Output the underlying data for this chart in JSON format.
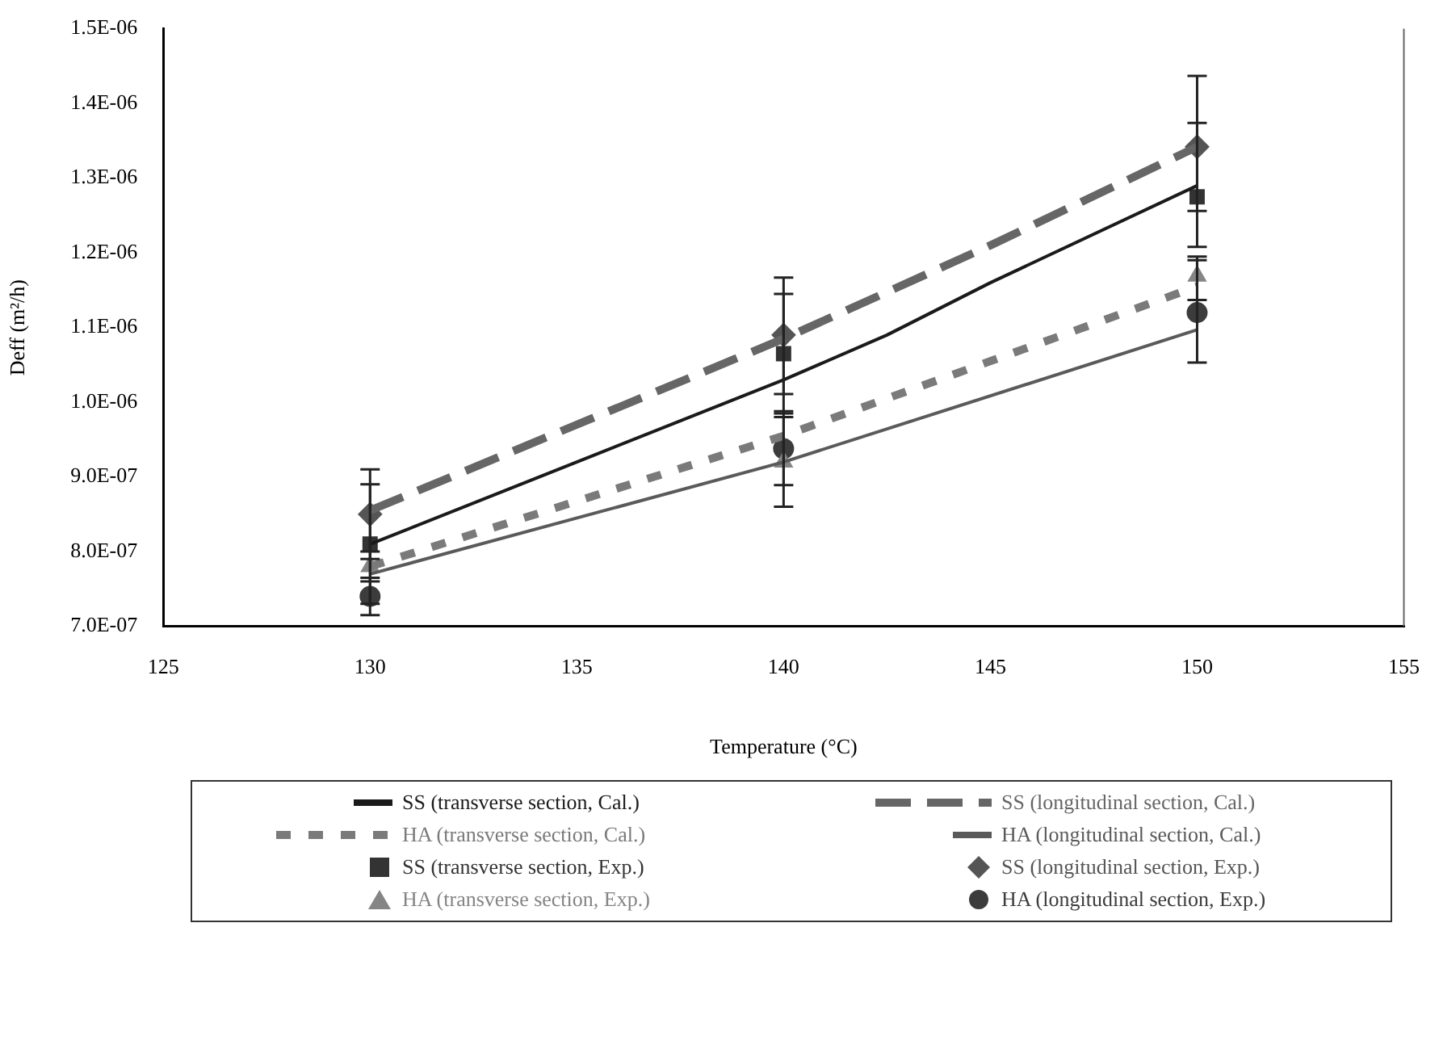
{
  "chart_data": {
    "type": "line",
    "xlabel": "Temperature (°C)",
    "ylabel": "Deff (m²/h)",
    "xlim": [
      125,
      155
    ],
    "xticks": [
      125,
      130,
      135,
      140,
      145,
      150,
      155
    ],
    "ylim": [
      7e-07,
      1.5e-06
    ],
    "yticks": [
      {
        "value": 7e-07,
        "label": "7.0E-07"
      },
      {
        "value": 8e-07,
        "label": "8.0E-07"
      },
      {
        "value": 9e-07,
        "label": "9.0E-07"
      },
      {
        "value": 1e-06,
        "label": "1.0E-06"
      },
      {
        "value": 1.1e-06,
        "label": "1.1E-06"
      },
      {
        "value": 1.2e-06,
        "label": "1.2E-06"
      },
      {
        "value": 1.3e-06,
        "label": "1.3E-06"
      },
      {
        "value": 1.4e-06,
        "label": "1.4E-06"
      },
      {
        "value": 1.5e-06,
        "label": "1.5E-06"
      }
    ],
    "grid": false,
    "legend": "bottom",
    "series": [
      {
        "name": "SS (transverse section, Cal.)",
        "color": "#1a1a1a",
        "line_style": "solid",
        "marker": "none",
        "x": [
          130,
          135,
          140,
          142.5,
          145,
          150
        ],
        "values": [
          8.1e-07,
          9.2e-07,
          1.03e-06,
          1.09e-06,
          1.16e-06,
          1.29e-06
        ]
      },
      {
        "name": "SS (longitudinal section, Cal.)",
        "color": "#666666",
        "line_style": "dashed",
        "marker": "none",
        "x": [
          130,
          140,
          145,
          150
        ],
        "values": [
          8.55e-07,
          1.085e-06,
          1.21e-06,
          1.342e-06
        ]
      },
      {
        "name": "HA (transverse section, Cal.)",
        "color": "#7a7a7a",
        "line_style": "dotted",
        "marker": "none",
        "x": [
          130,
          140,
          150
        ],
        "values": [
          7.8e-07,
          9.55e-07,
          1.155e-06
        ]
      },
      {
        "name": "HA (longitudinal section, Cal.)",
        "color": "#5a5a5a",
        "line_style": "solid",
        "marker": "none",
        "x": [
          130,
          140,
          150
        ],
        "values": [
          7.7e-07,
          9.2e-07,
          1.097e-06
        ]
      },
      {
        "name": "SS (transverse section, Exp.)",
        "type": "scatter",
        "color": "#333333",
        "marker": "square",
        "x": [
          130,
          140,
          150
        ],
        "values": [
          8.1e-07,
          1.065e-06,
          1.275e-06
        ],
        "errors": [
          [
            7.3e-07,
            8.9e-07
          ],
          [
            9.85e-07,
            1.145e-06
          ],
          [
            1.208e-06,
            1.374e-06
          ]
        ]
      },
      {
        "name": "SS (longitudinal section, Exp.)",
        "type": "scatter",
        "color": "#555555",
        "marker": "diamond",
        "x": [
          130,
          140,
          150
        ],
        "values": [
          8.5e-07,
          1.09e-06,
          1.342e-06
        ],
        "errors": [
          [
            7.9e-07,
            9.1e-07
          ],
          [
            1.011e-06,
            1.167e-06
          ],
          [
            1.256e-06,
            1.437e-06
          ]
        ]
      },
      {
        "name": "HA (transverse section, Exp.)",
        "type": "scatter",
        "color": "#858585",
        "marker": "triangle",
        "x": [
          130,
          140,
          150
        ],
        "values": [
          7.8e-07,
          9.2e-07,
          1.169e-06
        ],
        "errors": [
          [
            7.6e-07,
            8e-07
          ],
          [
            8.6e-07,
            9.8e-07
          ],
          [
            1.137e-06,
            1.195e-06
          ]
        ]
      },
      {
        "name": "HA (longitudinal section, Exp.)",
        "type": "scatter",
        "color": "#3c3c3c",
        "marker": "circle",
        "x": [
          130,
          140,
          150
        ],
        "values": [
          7.4e-07,
          9.38e-07,
          1.12e-06
        ],
        "errors": [
          [
            7.15e-07,
            7.65e-07
          ],
          [
            8.89e-07,
            9.88e-07
          ],
          [
            1.053e-06,
            1.19e-06
          ]
        ]
      }
    ]
  }
}
